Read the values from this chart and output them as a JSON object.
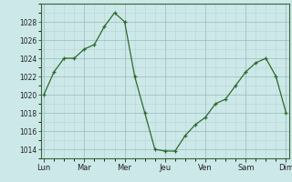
{
  "background_color": "#cce8e8",
  "grid_color_major": "#aaaaaa",
  "grid_color_minor": "#ccdddd",
  "line_color": "#2d6a2d",
  "marker_color": "#2d6a2d",
  "x_labels": [
    "Lun",
    "Mar",
    "Mer",
    "Jeu",
    "Ven",
    "Sam",
    "Dim"
  ],
  "x_ticks": [
    0,
    4,
    8,
    12,
    16,
    20,
    24
  ],
  "ylim": [
    1013,
    1030
  ],
  "yticks": [
    1014,
    1016,
    1018,
    1020,
    1022,
    1024,
    1026,
    1028
  ],
  "x_values": [
    0,
    1,
    2,
    3,
    4,
    5,
    6,
    7,
    8,
    9,
    10,
    11,
    12,
    13,
    14,
    15,
    16,
    17,
    18,
    19,
    20,
    21,
    22,
    23,
    24
  ],
  "y_values": [
    1020,
    1022.5,
    1024,
    1024,
    1025,
    1025.5,
    1027.5,
    1029,
    1028,
    1022,
    1018,
    1014,
    1013.8,
    1013.8,
    1015.5,
    1016.7,
    1017.5,
    1019,
    1019.5,
    1021,
    1022.5,
    1023.5,
    1024,
    1022,
    1018
  ]
}
